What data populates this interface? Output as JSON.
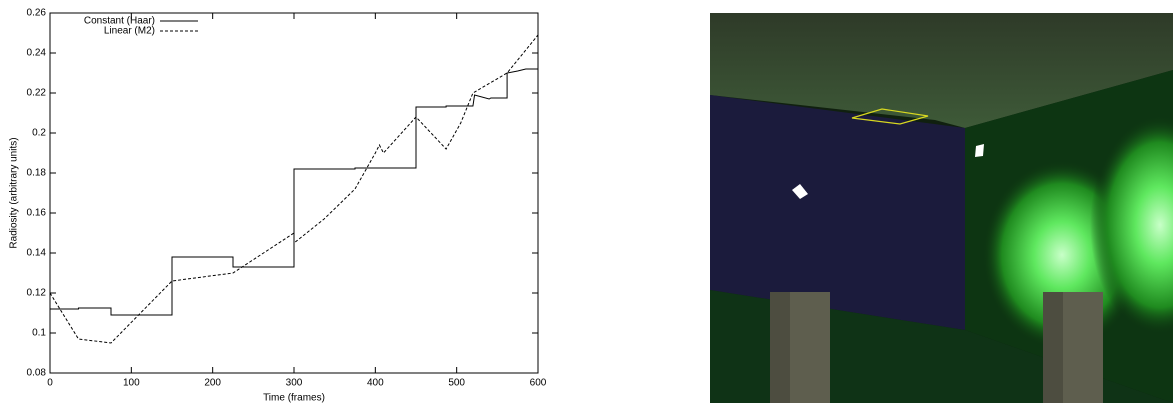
{
  "chart_data": {
    "type": "line",
    "xlabel": "Time (frames)",
    "ylabel": "Radiosity (arbitrary units)",
    "xlim": [
      0,
      600
    ],
    "xticks": [
      0,
      100,
      200,
      300,
      400,
      500,
      600
    ],
    "ylim": [
      0.08,
      0.26
    ],
    "yticks": [
      0.08,
      0.1,
      0.12,
      0.14,
      0.16,
      0.18,
      0.2,
      0.22,
      0.24,
      0.26
    ],
    "legend": "upper left",
    "series": [
      {
        "name": "Constant (Haar)",
        "color": "#000000",
        "style": "solid",
        "x": [
          0,
          35,
          35,
          75,
          75,
          150,
          150,
          225,
          225,
          300,
          300,
          375,
          375,
          450,
          450,
          487,
          487,
          520,
          522,
          540,
          542,
          562,
          562,
          575,
          575,
          585,
          600
        ],
        "values": [
          0.112,
          0.112,
          0.1125,
          0.1125,
          0.109,
          0.109,
          0.138,
          0.138,
          0.133,
          0.133,
          0.182,
          0.182,
          0.1825,
          0.1825,
          0.213,
          0.213,
          0.2135,
          0.2135,
          0.219,
          0.217,
          0.2175,
          0.2175,
          0.23,
          0.231,
          0.231,
          0.232,
          0.232
        ]
      },
      {
        "name": "Linear (M2)",
        "color": "#000000",
        "style": "dashed",
        "x": [
          0,
          35,
          75,
          150,
          225,
          300,
          300,
          337,
          375,
          400,
          405,
          410,
          450,
          487,
          505,
          520,
          562,
          600
        ],
        "values": [
          0.12,
          0.097,
          0.095,
          0.126,
          0.13,
          0.15,
          0.145,
          0.157,
          0.172,
          0.19,
          0.194,
          0.19,
          0.208,
          0.192,
          0.205,
          0.22,
          0.23,
          0.249
        ]
      }
    ]
  }
}
